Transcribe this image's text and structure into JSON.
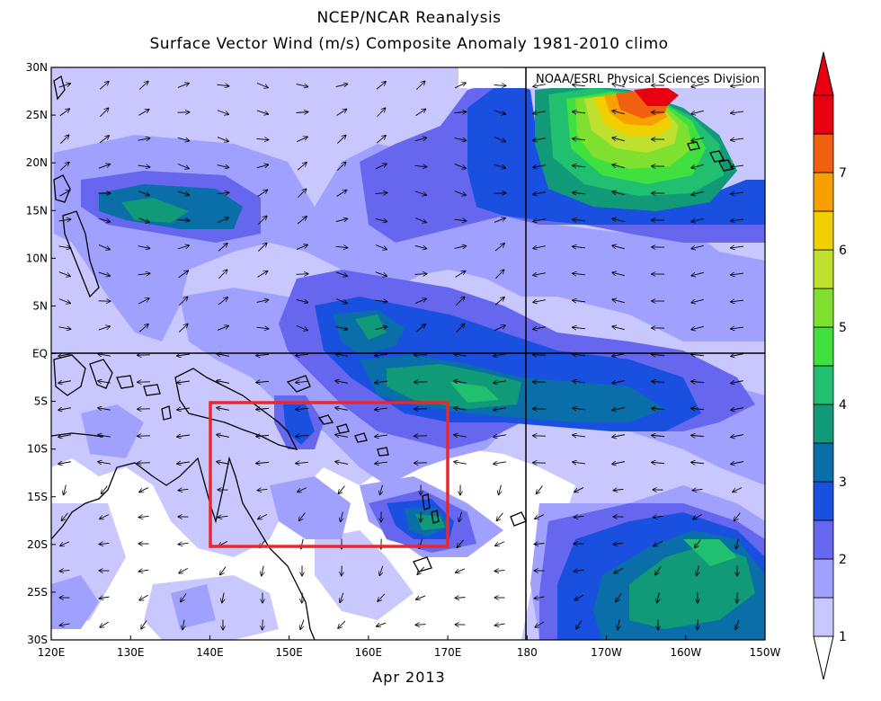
{
  "title_line1": "NCEP/NCAR Reanalysis",
  "title_line2": "Surface Vector Wind (m/s) Composite Anomaly 1981-2010 climo",
  "credit": "NOAA/ESRL Physical Sciences Division",
  "date_label": "Apr 2013",
  "lat_labels": [
    "30N",
    "25N",
    "20N",
    "15N",
    "10N",
    "5N",
    "EQ",
    "5S",
    "10S",
    "15S",
    "20S",
    "25S",
    "30S"
  ],
  "lon_labels": [
    "120E",
    "130E",
    "140E",
    "150E",
    "160E",
    "170E",
    "180",
    "170W",
    "160W",
    "150W"
  ],
  "colorbar": {
    "ticks": [
      "1",
      "2",
      "3",
      "4",
      "5",
      "6",
      "7"
    ],
    "colors": [
      "#c8c8ff",
      "#a0a0ff",
      "#6666ee",
      "#1a50e0",
      "#0a6fa8",
      "#109a78",
      "#20c070",
      "#40e040",
      "#80e030",
      "#c0e030",
      "#f0d000",
      "#f8a000",
      "#f06010",
      "#e80010"
    ]
  },
  "highlight_box": {
    "lon_min": "140E",
    "lon_max": "170E",
    "lat_min": "20S",
    "lat_max": "5S",
    "color": "#e8282c"
  }
}
